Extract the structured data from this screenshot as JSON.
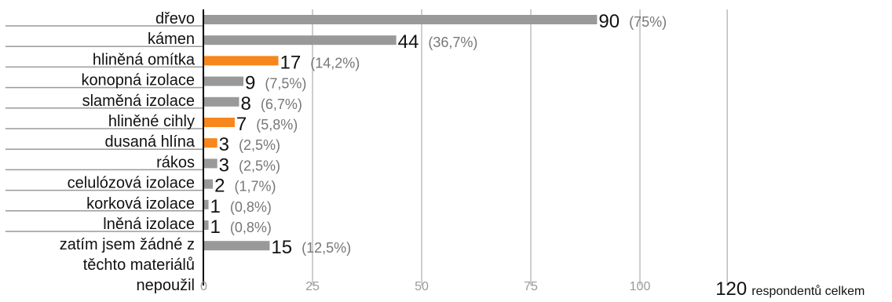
{
  "colors": {
    "default_bar": "#999999",
    "highlight_bar": "#f7861c",
    "grid": "#bdbdbd",
    "axis": "#000000"
  },
  "chart_data": {
    "type": "bar",
    "orientation": "horizontal",
    "categories": [
      "dřevo",
      "kámen",
      "hliněná omítka",
      "konopná izolace",
      "slaměná izolace",
      "hliněné cihly",
      "dusaná hlína",
      "rákos",
      "celulózová izolace",
      "korková izolace",
      "lněná izolace",
      [
        "zatím jsem žádné z",
        "těchto materiálů",
        "nepoužil"
      ]
    ],
    "values": [
      90,
      44,
      17,
      9,
      8,
      7,
      3,
      3,
      2,
      1,
      1,
      15
    ],
    "value_labels": [
      "90",
      "44",
      "17",
      "9",
      "8",
      "7",
      "3",
      "3",
      "2",
      "1",
      "1",
      "15"
    ],
    "percent_labels": [
      "(75%)",
      "(36,7%)",
      "(14,2%)",
      "(7,5%)",
      "(6,7%)",
      "(5,8%)",
      "(2,5%)",
      "(2,5%)",
      "(1,7%)",
      "(0,8%)",
      "(0,8%)",
      "(12,5%)"
    ],
    "highlighted": [
      false,
      false,
      true,
      false,
      false,
      true,
      true,
      false,
      false,
      false,
      false,
      false
    ],
    "xlim": [
      0,
      120
    ],
    "x_ticks": [
      0,
      25,
      50,
      75,
      100
    ],
    "x_tick_labels": [
      "0",
      "25",
      "50",
      "75",
      "100"
    ],
    "total_value": "120",
    "total_text": "respondentů celkem",
    "grid": true
  }
}
